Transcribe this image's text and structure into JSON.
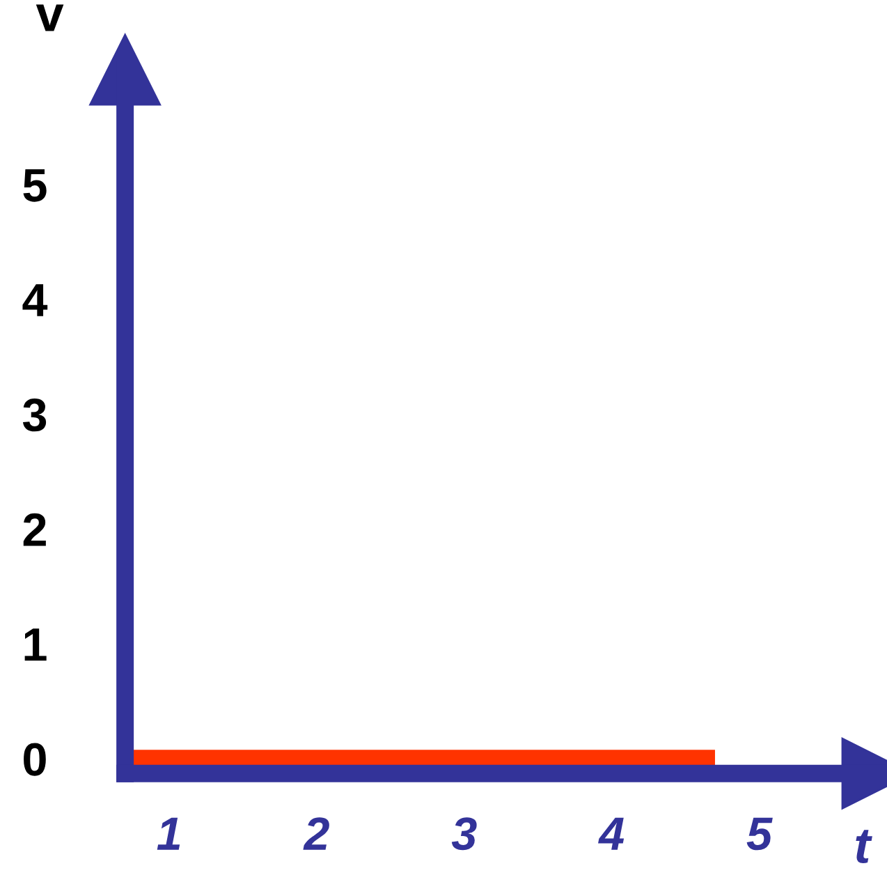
{
  "chart_data": {
    "type": "line",
    "xlabel": "t",
    "ylabel": "v",
    "series": [
      {
        "color": "#ff3300",
        "x": [
          0.7,
          4.7
        ],
        "values": [
          0,
          0
        ]
      }
    ],
    "xlim": [
      0.7,
      5.8
    ],
    "ylim": [
      -0.13,
      6.0
    ],
    "xticks": [
      1,
      2,
      3,
      4,
      5
    ],
    "yticks": [
      0,
      1,
      2,
      3,
      4,
      5
    ]
  }
}
